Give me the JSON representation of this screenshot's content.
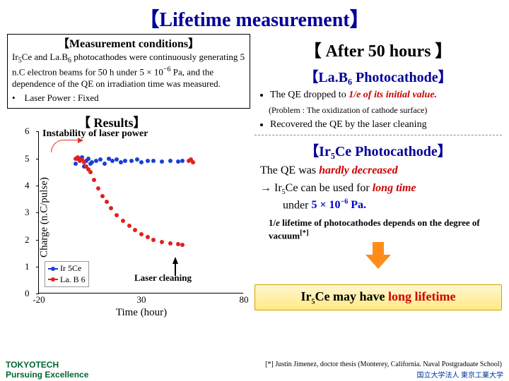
{
  "title": "【Lifetime measurement】",
  "conditions": {
    "heading": "【Measurement conditions】",
    "body_html": "Ir<span class='sub'>5</span>Ce and La.B<span class='sub'>6</span> photocathodes were continuously generating 5 n.C electron beams for 50 h under 5 × 10<span class='sup'>−6</span> Pa, and the dependence of the QE on irradiation time was measured.",
    "laser_bullet": "•　Laser Power : Fixed"
  },
  "after_heading": "【 After 50 hours 】",
  "lab6": {
    "heading": "【La.B₆ Photocathode】",
    "bullet1_html": "The QE dropped to <span class='hl-red'>1/e of its initial value.</span>",
    "problem": "(Problem : The oxidization of cathode surface)",
    "bullet2": "Recovered the QE by the laser cleaning"
  },
  "ir5ce": {
    "heading": "【Ir₅Ce Photocathode】",
    "line1_html": "The QE was <span class='hl-red'>hardly decreased</span>",
    "line2_html": "→ Ir<span class='sub'>5</span>Ce can be used for <span class='hl-red'>long time</span><br>　　under <span class='hl-blue'>5 × 10<span class='sup'>−6</span> Pa.</span>"
  },
  "depends_html": "1/<i>e</i> lifetime of photocathodes depends on the degree of vacuum<sup>[*]</sup>",
  "conclusion_html": "Ir<span class='sub'>5</span>Ce may have <span style='color:#cc0000'>long lifetime</span>",
  "citation": "[*] Justin Jimenez, doctor thesis (Monterey, California. Naval Postgraduate School)",
  "footer": {
    "left1": "TOKYOTECH",
    "left2": "Pursuing Excellence",
    "right": "国立大学法人 東京工業大学"
  },
  "chart": {
    "results_heading": "【 Results】",
    "instability_label": "Instability of laser power",
    "laser_cleaning_label": "Laser cleaning",
    "type": "scatter",
    "xlabel": "Time (hour)",
    "ylabel": "Charge (n.C/pulse)",
    "xlim": [
      -20,
      80
    ],
    "ylim": [
      0,
      6
    ],
    "xticks": [
      -20,
      30,
      80
    ],
    "yticks": [
      0,
      1,
      2,
      3,
      4,
      5,
      6
    ],
    "plot_bg": "#ffffff",
    "series": [
      {
        "name": "Ir 5Ce",
        "color": "#1a3fd4",
        "marker": "circle",
        "marker_size": 6,
        "points": [
          [
            -2,
            4.8
          ],
          [
            -1,
            5.0
          ],
          [
            0,
            4.95
          ],
          [
            1,
            5.05
          ],
          [
            2,
            4.7
          ],
          [
            3,
            4.9
          ],
          [
            4,
            5.0
          ],
          [
            5,
            4.8
          ],
          [
            6,
            4.85
          ],
          [
            8,
            4.9
          ],
          [
            10,
            4.95
          ],
          [
            12,
            4.8
          ],
          [
            14,
            5.0
          ],
          [
            16,
            4.9
          ],
          [
            18,
            4.95
          ],
          [
            20,
            4.85
          ],
          [
            22,
            4.9
          ],
          [
            25,
            4.9
          ],
          [
            28,
            4.95
          ],
          [
            30,
            4.85
          ],
          [
            33,
            4.9
          ],
          [
            36,
            4.92
          ],
          [
            40,
            4.88
          ],
          [
            44,
            4.9
          ],
          [
            48,
            4.87
          ],
          [
            50,
            4.9
          ]
        ]
      },
      {
        "name": "La. B 6",
        "color": "#e02020",
        "marker": "circle",
        "marker_size": 6,
        "points": [
          [
            -2,
            5.0
          ],
          [
            -1,
            5.05
          ],
          [
            0,
            4.9
          ],
          [
            1,
            4.95
          ],
          [
            2,
            4.85
          ],
          [
            3,
            4.7
          ],
          [
            4,
            4.6
          ],
          [
            5,
            4.5
          ],
          [
            7,
            4.2
          ],
          [
            9,
            3.9
          ],
          [
            11,
            3.6
          ],
          [
            13,
            3.4
          ],
          [
            15,
            3.15
          ],
          [
            18,
            2.9
          ],
          [
            21,
            2.7
          ],
          [
            24,
            2.5
          ],
          [
            27,
            2.35
          ],
          [
            30,
            2.2
          ],
          [
            33,
            2.1
          ],
          [
            36,
            2.0
          ],
          [
            40,
            1.9
          ],
          [
            44,
            1.85
          ],
          [
            48,
            1.82
          ],
          [
            50,
            1.8
          ],
          [
            53,
            4.9
          ],
          [
            54,
            4.95
          ],
          [
            55,
            4.85
          ]
        ]
      }
    ]
  }
}
